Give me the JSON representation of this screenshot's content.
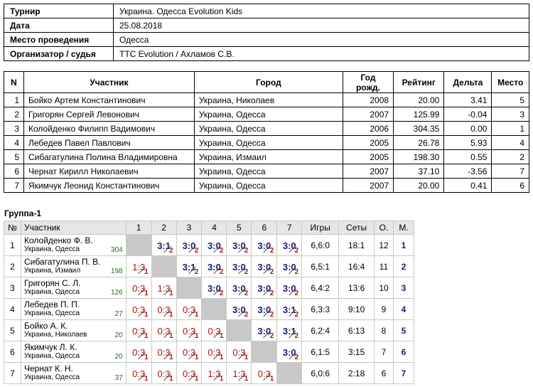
{
  "info": [
    {
      "key": "Турнир",
      "value": "Украина. Одесса Evolution Kids"
    },
    {
      "key": "Дата",
      "value": "25.08.2018"
    },
    {
      "key": "Место проведения",
      "value": "Одесса"
    },
    {
      "key": "Организатор / судья",
      "value": "TTC Evolution / Ахламов С.В."
    }
  ],
  "participants": {
    "headers": [
      "N",
      "Участник",
      "Город",
      "Год рожд.",
      "Рейтинг",
      "Дельта",
      "Место"
    ],
    "rows": [
      [
        "1",
        "Бойко Артем Константинович",
        "Украина, Николаев",
        "2008",
        "20.00",
        "3.41",
        "5"
      ],
      [
        "2",
        "Григорян Сергей Левонович",
        "Украина, Одесса",
        "2007",
        "125.99",
        "-0.04",
        "3"
      ],
      [
        "3",
        "Колойденко Филипп Вадимович",
        "Украина, Одесса",
        "2006",
        "304.35",
        "0.00",
        "1"
      ],
      [
        "4",
        "Лебедев Павел Павлович",
        "Украина, Одесса",
        "2005",
        "26.78",
        "5.93",
        "4"
      ],
      [
        "5",
        "Сибагатулина Полина Владимировна",
        "Украина, Измаил",
        "2005",
        "198.30",
        "0.55",
        "2"
      ],
      [
        "6",
        "Чернат Кирилл Николаевич",
        "Украина, Одесса",
        "2007",
        "37.10",
        "-3.56",
        "7"
      ],
      [
        "7",
        "Якимчук Леонид Константинович",
        "Украина, Одесса",
        "2007",
        "20.00",
        "0.41",
        "6"
      ]
    ]
  },
  "group": {
    "title": "Группа-1",
    "headers": [
      "№",
      "Участник",
      "1",
      "2",
      "3",
      "4",
      "5",
      "6",
      "7",
      "Игры",
      "Сеты",
      "О.",
      "М."
    ],
    "rows": [
      {
        "n": "1",
        "name": "Колойденко Ф. В.",
        "city": "Украина, Одесса",
        "rating": "304",
        "cells": [
          null,
          [
            "3:1",
            "2",
            "w"
          ],
          [
            "3:0",
            "2",
            "w"
          ],
          [
            "3:0",
            "2",
            "w"
          ],
          [
            "3:0",
            "2",
            "w"
          ],
          [
            "3:0",
            "2",
            "w"
          ],
          [
            "3:0",
            "2",
            "w"
          ]
        ],
        "games": "6,6:0",
        "sets": "18:1",
        "points": "12",
        "place": "1"
      },
      {
        "n": "2",
        "name": "Сибагатулина П. В.",
        "city": "Украина, Измаил",
        "rating": "198",
        "cells": [
          [
            "1:3",
            "1",
            "l"
          ],
          null,
          [
            "3:1",
            "2",
            "w"
          ],
          [
            "3:0",
            "2",
            "w"
          ],
          [
            "3:0",
            "2",
            "w"
          ],
          [
            "3:0",
            "2",
            "w"
          ],
          [
            "3:0",
            "2",
            "w"
          ]
        ],
        "games": "6,5:1",
        "sets": "16:4",
        "points": "11",
        "place": "2"
      },
      {
        "n": "3",
        "name": "Григорян С. Л.",
        "city": "Украина, Одесса",
        "rating": "126",
        "cells": [
          [
            "0:3",
            "1",
            "l"
          ],
          [
            "1:3",
            "1",
            "l"
          ],
          null,
          [
            "3:0",
            "2",
            "w"
          ],
          [
            "3:0",
            "2",
            "w"
          ],
          [
            "3:0",
            "2",
            "w"
          ],
          [
            "3:0",
            "2",
            "w"
          ]
        ],
        "games": "6,4:2",
        "sets": "13:6",
        "points": "10",
        "place": "3"
      },
      {
        "n": "4",
        "name": "Лебедев П. П.",
        "city": "Украина, Одесса",
        "rating": "27",
        "cells": [
          [
            "0:3",
            "1",
            "l"
          ],
          [
            "0:3",
            "1",
            "l"
          ],
          [
            "0:3",
            "1",
            "l"
          ],
          null,
          [
            "3:0",
            "2",
            "w"
          ],
          [
            "3:0",
            "2",
            "w"
          ],
          [
            "3:1",
            "2",
            "w"
          ]
        ],
        "games": "6,3:3",
        "sets": "9:10",
        "points": "9",
        "place": "4"
      },
      {
        "n": "5",
        "name": "Бойко А. К.",
        "city": "Украина, Николаев",
        "rating": "20",
        "cells": [
          [
            "0:3",
            "1",
            "l"
          ],
          [
            "0:3",
            "1",
            "l"
          ],
          [
            "0:3",
            "1",
            "l"
          ],
          [
            "0:3",
            "1",
            "l"
          ],
          null,
          [
            "3:0",
            "2",
            "w"
          ],
          [
            "3:1",
            "2",
            "w"
          ]
        ],
        "games": "6,2:4",
        "sets": "6:13",
        "points": "8",
        "place": "5"
      },
      {
        "n": "6",
        "name": "Якимчук Л. К.",
        "city": "Украина, Одесса",
        "rating": "20",
        "cells": [
          [
            "0:3",
            "1",
            "l"
          ],
          [
            "0:3",
            "1",
            "l"
          ],
          [
            "0:3",
            "1",
            "l"
          ],
          [
            "0:3",
            "1",
            "l"
          ],
          [
            "0:3",
            "1",
            "l"
          ],
          null,
          [
            "3:0",
            "2",
            "w"
          ]
        ],
        "games": "6,1:5",
        "sets": "3:15",
        "points": "7",
        "place": "6"
      },
      {
        "n": "7",
        "name": "Чернат К. Н.",
        "city": "Украина, Одесса",
        "rating": "37",
        "cells": [
          [
            "0:3",
            "1",
            "l"
          ],
          [
            "0:3",
            "1",
            "l"
          ],
          [
            "0:3",
            "1",
            "l"
          ],
          [
            "1:3",
            "1",
            "l"
          ],
          [
            "1:3",
            "1",
            "l"
          ],
          [
            "0:3",
            "1",
            "l"
          ],
          null
        ],
        "games": "6,0:6",
        "sets": "2:18",
        "points": "6",
        "place": "7"
      }
    ]
  }
}
